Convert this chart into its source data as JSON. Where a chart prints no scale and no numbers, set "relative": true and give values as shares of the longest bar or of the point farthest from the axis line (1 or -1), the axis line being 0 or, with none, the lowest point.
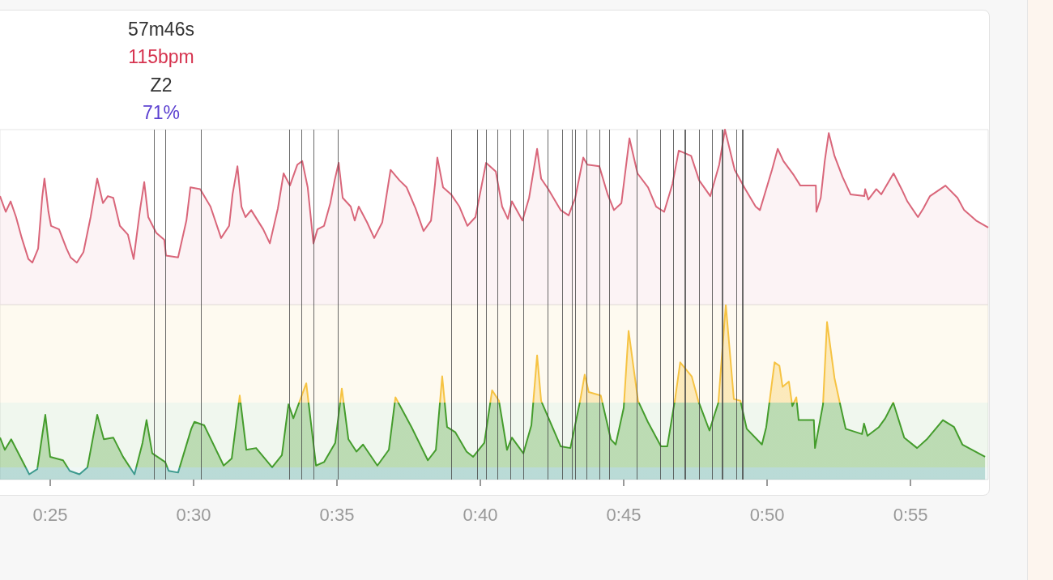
{
  "chart_data": [
    {
      "type": "area",
      "relative": true,
      "tick_labels": false,
      "annotations": [
        "57m46s",
        "115bpm",
        "Z2",
        "71%"
      ],
      "xlim": [
        23.25,
        57.71
      ],
      "ref_lines": [
        {
          "axis": "x",
          "value": 28.62
        },
        {
          "axis": "x",
          "value": 29.01
        },
        {
          "axis": "x",
          "value": 30.25
        },
        {
          "axis": "x",
          "value": 33.33
        },
        {
          "axis": "x",
          "value": 33.76
        },
        {
          "axis": "x",
          "value": 34.18
        },
        {
          "axis": "x",
          "value": 35.03
        },
        {
          "axis": "x",
          "value": 38.98
        },
        {
          "axis": "x",
          "value": 39.89
        },
        {
          "axis": "x",
          "value": 40.2
        },
        {
          "axis": "x",
          "value": 40.59
        },
        {
          "axis": "x",
          "value": 41.05
        },
        {
          "axis": "x",
          "value": 41.5
        },
        {
          "axis": "x",
          "value": 42.35
        },
        {
          "axis": "x",
          "value": 42.85
        },
        {
          "axis": "x",
          "value": 43.19
        },
        {
          "axis": "x",
          "value": 43.31
        },
        {
          "axis": "x",
          "value": 43.7
        },
        {
          "axis": "x",
          "value": 44.15
        },
        {
          "axis": "x",
          "value": 44.49
        },
        {
          "axis": "x",
          "value": 45.45
        },
        {
          "axis": "x",
          "value": 46.27
        },
        {
          "axis": "x",
          "value": 46.72
        },
        {
          "axis": "x",
          "value": 47.12
        },
        {
          "axis": "x",
          "value": 47.15
        },
        {
          "axis": "x",
          "value": 47.63
        },
        {
          "axis": "x",
          "value": 48.08
        },
        {
          "axis": "x",
          "value": 48.42
        },
        {
          "axis": "x",
          "value": 48.45
        },
        {
          "axis": "x",
          "value": 48.93
        },
        {
          "axis": "x",
          "value": 49.12
        },
        {
          "axis": "x",
          "value": 49.15
        }
      ],
      "series": [
        {
          "color": "#d9667a",
          "x": [
            23.25,
            23.45,
            23.62,
            23.81,
            24.01,
            24.24,
            24.38,
            24.58,
            24.72,
            24.8,
            24.94,
            25.03,
            25.31,
            25.57,
            25.71,
            25.93,
            26.16,
            26.41,
            26.64,
            26.84,
            27.01,
            27.2,
            27.43,
            27.71,
            27.91,
            28.14,
            28.28,
            28.42,
            28.7,
            28.98,
            29.04,
            29.46,
            29.75,
            29.89,
            30.23,
            30.59,
            30.96,
            31.24,
            31.36,
            31.53,
            31.67,
            31.81,
            32.01,
            32.43,
            32.66,
            32.94,
            33.14,
            33.36,
            33.62,
            33.79,
            33.98,
            34.18,
            34.32,
            34.55,
            34.77,
            34.92,
            35.06,
            35.2,
            35.48,
            35.62,
            35.76,
            36.05,
            36.3,
            36.58,
            36.87,
            37.18,
            37.43,
            37.74,
            38.02,
            38.28,
            38.42,
            38.5,
            38.7,
            38.98,
            39.27,
            39.55,
            39.83,
            40.2,
            40.54,
            40.76,
            40.96,
            41.1,
            41.47,
            41.7,
            41.98,
            42.12,
            42.37,
            42.8,
            43.08,
            43.31,
            43.59,
            43.73,
            44.15,
            44.44,
            44.66,
            44.92,
            45.2,
            45.48,
            45.85,
            46.13,
            46.41,
            46.7,
            46.92,
            47.35,
            47.63,
            48.02,
            48.33,
            48.53,
            48.87,
            49.24,
            49.6,
            49.75,
            50.17,
            50.37,
            50.57,
            50.93,
            51.16,
            51.7,
            51.72,
            51.87,
            52.01,
            52.15,
            52.35,
            52.63,
            52.91,
            53.39,
            53.42,
            53.53,
            53.81,
            53.98,
            54.41,
            54.69,
            54.89,
            55.26,
            55.45,
            55.68,
            56.22,
            56.64,
            56.87,
            57.29,
            57.71
          ],
          "values": [
            0.62,
            0.53,
            0.59,
            0.5,
            0.38,
            0.26,
            0.24,
            0.32,
            0.61,
            0.72,
            0.53,
            0.45,
            0.43,
            0.32,
            0.27,
            0.24,
            0.3,
            0.5,
            0.72,
            0.58,
            0.62,
            0.61,
            0.45,
            0.4,
            0.26,
            0.55,
            0.7,
            0.5,
            0.41,
            0.37,
            0.28,
            0.27,
            0.48,
            0.67,
            0.66,
            0.56,
            0.38,
            0.45,
            0.63,
            0.79,
            0.56,
            0.5,
            0.54,
            0.43,
            0.35,
            0.55,
            0.75,
            0.68,
            0.8,
            0.82,
            0.67,
            0.35,
            0.43,
            0.45,
            0.58,
            0.71,
            0.81,
            0.61,
            0.56,
            0.48,
            0.56,
            0.47,
            0.38,
            0.47,
            0.77,
            0.71,
            0.67,
            0.55,
            0.42,
            0.48,
            0.69,
            0.84,
            0.67,
            0.63,
            0.56,
            0.45,
            0.5,
            0.81,
            0.76,
            0.56,
            0.49,
            0.59,
            0.48,
            0.61,
            0.89,
            0.72,
            0.66,
            0.54,
            0.51,
            0.61,
            0.84,
            0.8,
            0.79,
            0.63,
            0.54,
            0.58,
            0.95,
            0.75,
            0.67,
            0.56,
            0.53,
            0.69,
            0.88,
            0.85,
            0.71,
            0.62,
            0.8,
            1,
            0.77,
            0.66,
            0.56,
            0.54,
            0.77,
            0.89,
            0.82,
            0.74,
            0.68,
            0.68,
            0.53,
            0.61,
            0.82,
            0.98,
            0.85,
            0.73,
            0.63,
            0.62,
            0.66,
            0.6,
            0.66,
            0.63,
            0.75,
            0.66,
            0.59,
            0.5,
            0.55,
            0.62,
            0.68,
            0.61,
            0.54,
            0.48,
            0.44
          ]
        }
      ]
    },
    {
      "type": "area",
      "relative": true,
      "tick_labels": "x",
      "xlim": [
        23.25,
        57.71
      ],
      "xticks": [
        {
          "value": 25,
          "label": "0:25"
        },
        {
          "value": 30,
          "label": "0:30"
        },
        {
          "value": 35,
          "label": "0:35"
        },
        {
          "value": 40,
          "label": "0:40"
        },
        {
          "value": 45,
          "label": "0:45"
        },
        {
          "value": 50,
          "label": "0:50"
        },
        {
          "value": 55,
          "label": "0:55"
        }
      ],
      "bands": [
        {
          "axis": "y",
          "from": 0,
          "to": 0.07,
          "color": "#3d9a8e"
        },
        {
          "axis": "y",
          "from": 0.07,
          "to": 0.44,
          "color": "#449c2c"
        },
        {
          "axis": "y",
          "from": 0.44,
          "to": 1,
          "color": "#f6c343"
        }
      ],
      "ref_lines": [
        {
          "axis": "x",
          "value": 28.62
        },
        {
          "axis": "x",
          "value": 29.01
        },
        {
          "axis": "x",
          "value": 30.25
        },
        {
          "axis": "x",
          "value": 33.33
        },
        {
          "axis": "x",
          "value": 33.76
        },
        {
          "axis": "x",
          "value": 34.18
        },
        {
          "axis": "x",
          "value": 35.03
        },
        {
          "axis": "x",
          "value": 38.98
        },
        {
          "axis": "x",
          "value": 39.89
        },
        {
          "axis": "x",
          "value": 40.2
        },
        {
          "axis": "x",
          "value": 40.59
        },
        {
          "axis": "x",
          "value": 41.05
        },
        {
          "axis": "x",
          "value": 41.5
        },
        {
          "axis": "x",
          "value": 42.35
        },
        {
          "axis": "x",
          "value": 42.85
        },
        {
          "axis": "x",
          "value": 43.19
        },
        {
          "axis": "x",
          "value": 43.31
        },
        {
          "axis": "x",
          "value": 43.7
        },
        {
          "axis": "x",
          "value": 44.15
        },
        {
          "axis": "x",
          "value": 44.49
        },
        {
          "axis": "x",
          "value": 45.45
        },
        {
          "axis": "x",
          "value": 46.27
        },
        {
          "axis": "x",
          "value": 46.72
        },
        {
          "axis": "x",
          "value": 47.12
        },
        {
          "axis": "x",
          "value": 47.15
        },
        {
          "axis": "x",
          "value": 47.63
        },
        {
          "axis": "x",
          "value": 48.08
        },
        {
          "axis": "x",
          "value": 48.42
        },
        {
          "axis": "x",
          "value": 48.45
        },
        {
          "axis": "x",
          "value": 48.93
        },
        {
          "axis": "x",
          "value": 49.12
        },
        {
          "axis": "x",
          "value": 49.15
        }
      ],
      "series": [
        {
          "x": [
            23.25,
            23.42,
            23.64,
            24.27,
            24.55,
            24.72,
            24.83,
            25.0,
            25.45,
            25.68,
            26.02,
            26.3,
            26.64,
            26.87,
            27.2,
            27.54,
            27.94,
            28.22,
            28.36,
            28.56,
            29.01,
            29.13,
            29.46,
            29.92,
            30.03,
            30.37,
            31.05,
            31.33,
            31.61,
            31.84,
            32.18,
            32.74,
            33.08,
            33.31,
            33.48,
            33.93,
            34.27,
            34.55,
            34.94,
            35.17,
            35.4,
            35.68,
            35.91,
            36.41,
            36.81,
            37.04,
            37.6,
            38.17,
            38.45,
            38.67,
            38.84,
            39.13,
            39.52,
            39.75,
            40.14,
            40.41,
            40.65,
            40.93,
            41.1,
            41.5,
            41.78,
            41.98,
            42.12,
            42.8,
            43.14,
            43.48,
            43.64,
            43.78,
            44.2,
            44.55,
            44.72,
            45.0,
            45.17,
            45.5,
            45.84,
            46.3,
            46.52,
            46.8,
            46.97,
            47.37,
            47.6,
            47.99,
            48.3,
            48.56,
            48.84,
            49.07,
            49.29,
            49.82,
            49.97,
            50.26,
            50.43,
            50.54,
            50.76,
            50.88,
            51.02,
            51.1,
            51.63,
            51.67,
            51.95,
            52.09,
            52.35,
            52.52,
            52.74,
            53.31,
            53.38,
            53.5,
            53.9,
            54.12,
            54.4,
            54.78,
            55.23,
            55.57,
            56.13,
            56.52,
            56.81,
            57.6
          ],
          "values": [
            0.24,
            0.17,
            0.23,
            0.03,
            0.06,
            0.25,
            0.37,
            0.13,
            0.11,
            0.05,
            0.03,
            0.07,
            0.37,
            0.23,
            0.24,
            0.13,
            0.03,
            0.21,
            0.34,
            0.15,
            0.1,
            0.05,
            0.04,
            0.29,
            0.33,
            0.31,
            0.08,
            0.12,
            0.48,
            0.17,
            0.18,
            0.07,
            0.14,
            0.43,
            0.35,
            0.55,
            0.08,
            0.1,
            0.21,
            0.52,
            0.23,
            0.16,
            0.2,
            0.08,
            0.17,
            0.47,
            0.3,
            0.11,
            0.17,
            0.59,
            0.3,
            0.27,
            0.16,
            0.13,
            0.21,
            0.51,
            0.45,
            0.17,
            0.24,
            0.15,
            0.31,
            0.71,
            0.45,
            0.19,
            0.18,
            0.45,
            0.6,
            0.5,
            0.48,
            0.23,
            0.2,
            0.41,
            0.85,
            0.45,
            0.33,
            0.19,
            0.19,
            0.47,
            0.67,
            0.59,
            0.45,
            0.28,
            0.44,
            1,
            0.46,
            0.45,
            0.29,
            0.2,
            0.3,
            0.67,
            0.65,
            0.53,
            0.56,
            0.42,
            0.47,
            0.34,
            0.34,
            0.18,
            0.43,
            0.9,
            0.58,
            0.45,
            0.29,
            0.26,
            0.32,
            0.25,
            0.3,
            0.35,
            0.44,
            0.24,
            0.18,
            0.23,
            0.34,
            0.3,
            0.2,
            0.13
          ]
        }
      ]
    }
  ]
}
